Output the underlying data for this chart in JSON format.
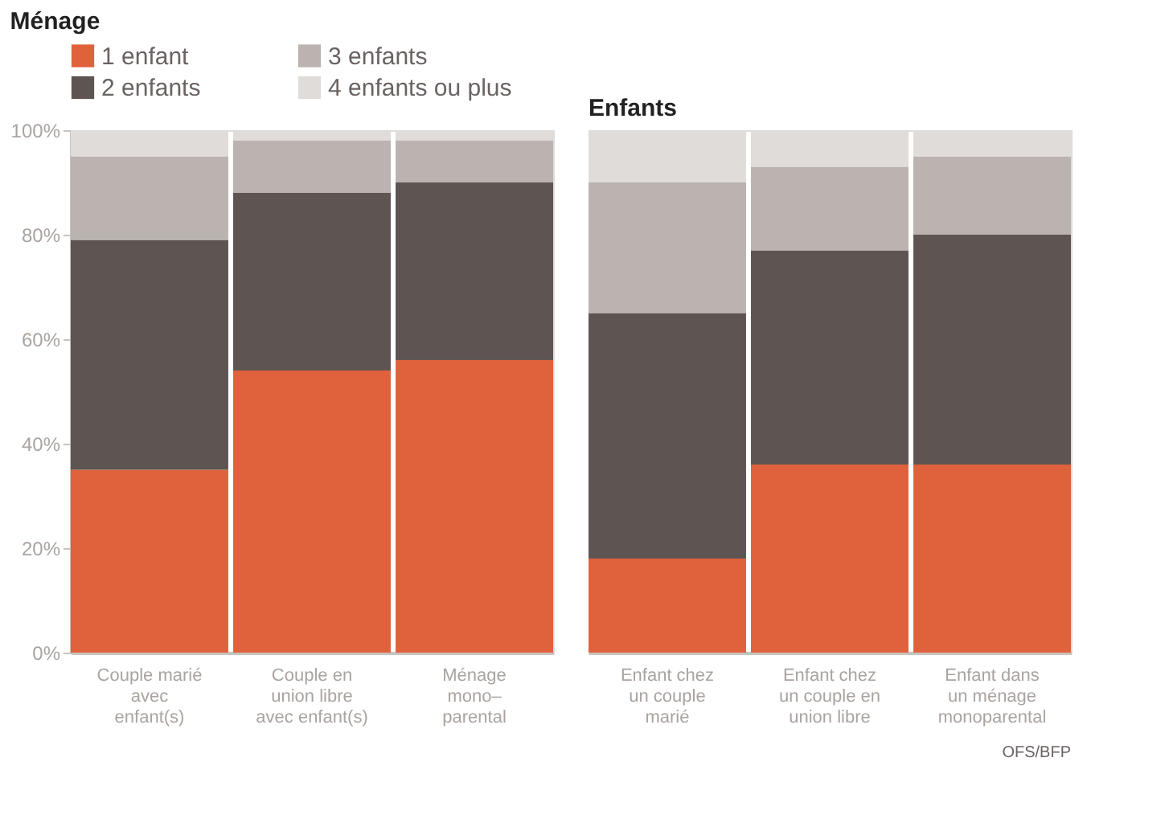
{
  "chart_data": [
    {
      "type": "bar",
      "title": "Ménage",
      "stacked": true,
      "legend": "top left",
      "categories": [
        "Couple marié\navec\nenfant(s)",
        "Couple en\nunion libre\navec enfant(s)",
        "Ménage\nmono–\nparental"
      ],
      "series": [
        {
          "name": "1 enfant",
          "color": "#e0623c",
          "values": [
            35,
            54,
            56
          ]
        },
        {
          "name": "2 enfants",
          "color": "#5e5553",
          "values": [
            44,
            34,
            34
          ]
        },
        {
          "name": "3 enfants",
          "color": "#bab3b0",
          "values": [
            16,
            10,
            8
          ]
        },
        {
          "name": "4 enfants ou plus",
          "color": "#e0dcda",
          "values": [
            5,
            2,
            2
          ]
        }
      ],
      "ylim": [
        0,
        100
      ],
      "yticks": [
        {
          "value": 0,
          "label": "0%"
        },
        {
          "value": 20,
          "label": "20%"
        },
        {
          "value": 40,
          "label": "40%"
        },
        {
          "value": 60,
          "label": "60%"
        },
        {
          "value": 80,
          "label": "80%"
        },
        {
          "value": 100,
          "label": "100%"
        }
      ],
      "grid": false
    },
    {
      "type": "bar",
      "title": "Enfants",
      "stacked": true,
      "tick_labels": "x",
      "categories": [
        "Enfant chez\nun couple\nmarié",
        "Enfant chez\nun couple en\nunion libre",
        "Enfant dans\nun ménage\nmonoparental"
      ],
      "series": [
        {
          "color": "#e0623c",
          "values": [
            18,
            36,
            36
          ]
        },
        {
          "color": "#5e5553",
          "values": [
            47,
            41,
            44
          ]
        },
        {
          "color": "#bab3b0",
          "values": [
            25,
            16,
            15
          ]
        },
        {
          "color": "#e0dcda",
          "values": [
            10,
            7,
            5
          ]
        }
      ],
      "ylim": [
        0,
        100
      ],
      "grid": false,
      "annotations": [
        "OFS/BFP"
      ]
    }
  ]
}
